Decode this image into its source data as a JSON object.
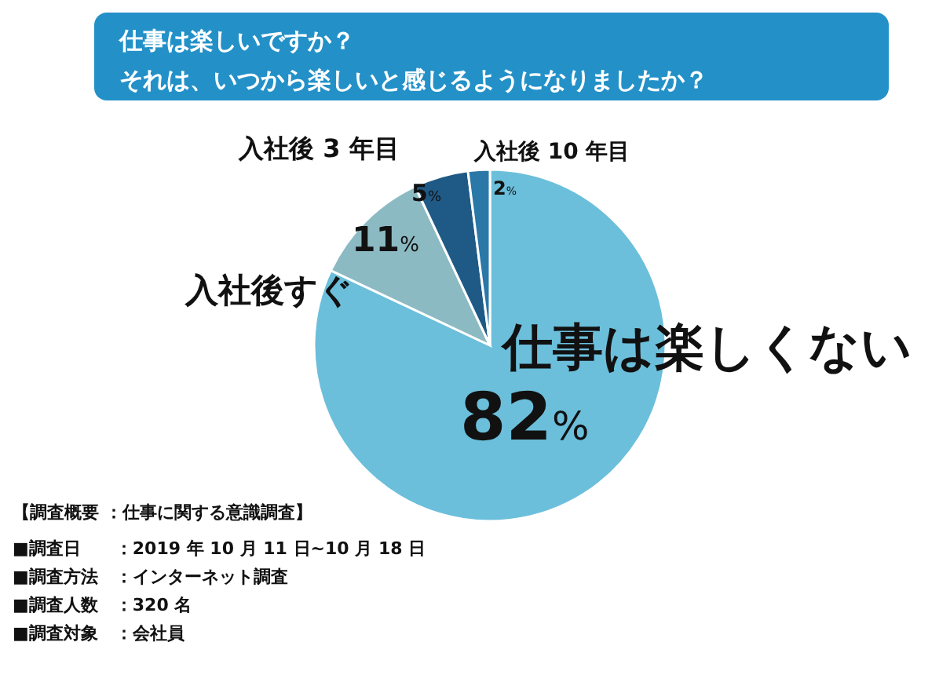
{
  "chart_data": {
    "type": "pie",
    "title": "仕事は楽しいですか？",
    "subtitle": "それは、いつから楽しいと感じるようになりましたか？",
    "categories": [
      "仕事は楽しくない",
      "入社後すぐ",
      "入社後 3 年目",
      "入社後 10 年目"
    ],
    "values": [
      82,
      11,
      5,
      2
    ],
    "colors": [
      "#6bbfdb",
      "#8cbac3",
      "#1f5a86",
      "#2a78a8"
    ],
    "value_labels": [
      "82%",
      "11%",
      "5%",
      "2%"
    ],
    "annotations": [
      "【調査概要 ：仕事に関する意識調査】",
      "■調査日　　：2019 年 10 月 11 日~10 月 18 日",
      "■調査方法　：インターネット調査",
      "■調査人数　：320 名",
      "■調査対象　：会社員"
    ]
  }
}
